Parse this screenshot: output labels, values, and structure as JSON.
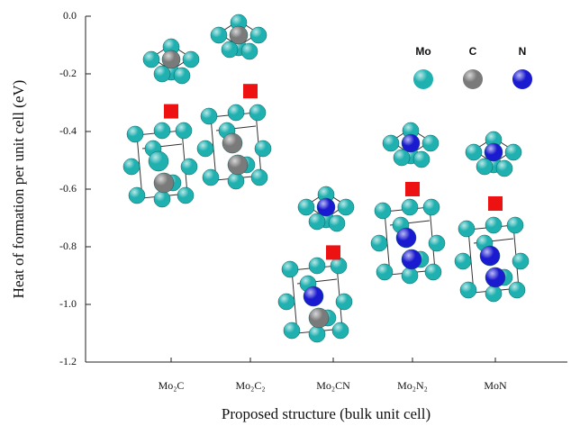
{
  "chart_data": {
    "type": "scatter",
    "y_label": "Heat of formation per unit cell (eV)",
    "x_label": "Proposed structure (bulk unit cell)",
    "categories": [
      "Mo₂C",
      "Mo₂C₂",
      "Mo₂CN",
      "Mo₂N₂",
      "MoN"
    ],
    "values": [
      -0.33,
      -0.26,
      -0.82,
      -0.6,
      -0.65
    ],
    "color": "#ee1111",
    "ylim": [
      -1.2,
      0
    ],
    "yticks": [
      {
        "value": 0,
        "label": "0.0"
      },
      -0.2,
      -0.4,
      -0.6,
      -0.8,
      {
        "value": -1,
        "label": "-1.0"
      },
      -1.2
    ],
    "atoms": [
      {
        "name": "Mo",
        "color": "#1fb0b0"
      },
      {
        "name": "C",
        "color": "#7a7a7a"
      },
      {
        "name": "N",
        "color": "#1a1ad0"
      }
    ]
  }
}
